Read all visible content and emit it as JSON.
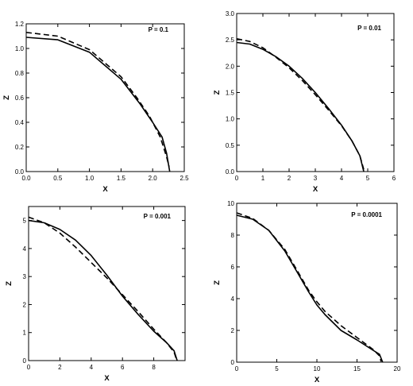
{
  "chart_data": [
    {
      "type": "line",
      "annotation": "P = 0.1",
      "xlabel": "X",
      "ylabel": "Z",
      "xlim": [
        0,
        2.5
      ],
      "ylim": [
        0,
        1.2
      ],
      "xticks": [
        "0.0",
        "0.5",
        "1.0",
        "1.5",
        "2.0",
        "2.5"
      ],
      "yticks": [
        "0.0",
        "0.2",
        "0.4",
        "0.6",
        "0.8",
        "1.0",
        "1.2"
      ],
      "grid": false,
      "series": [
        {
          "style": "solid",
          "points": [
            [
              0,
              1.09
            ],
            [
              0.5,
              1.07
            ],
            [
              1.0,
              0.97
            ],
            [
              1.5,
              0.75
            ],
            [
              1.8,
              0.55
            ],
            [
              2.0,
              0.4
            ],
            [
              2.15,
              0.28
            ],
            [
              2.22,
              0.15
            ],
            [
              2.27,
              0.0
            ]
          ]
        },
        {
          "style": "dashed",
          "points": [
            [
              0,
              1.13
            ],
            [
              0.5,
              1.1
            ],
            [
              1.0,
              0.99
            ],
            [
              1.5,
              0.77
            ],
            [
              1.75,
              0.6
            ],
            [
              1.95,
              0.45
            ],
            [
              2.12,
              0.28
            ],
            [
              2.22,
              0.12
            ],
            [
              2.26,
              0.04
            ]
          ]
        }
      ]
    },
    {
      "type": "line",
      "annotation": "P = 0.01",
      "xlabel": "X",
      "ylabel": "Z",
      "xlim": [
        0,
        6
      ],
      "ylim": [
        0,
        3.0
      ],
      "xticks": [
        "0",
        "1",
        "2",
        "3",
        "4",
        "5",
        "6"
      ],
      "yticks": [
        "0.0",
        "0.5",
        "1.0",
        "1.5",
        "2.0",
        "2.5",
        "3.0"
      ],
      "grid": false,
      "series": [
        {
          "style": "solid",
          "points": [
            [
              0,
              2.45
            ],
            [
              0.5,
              2.42
            ],
            [
              1.0,
              2.32
            ],
            [
              1.5,
              2.18
            ],
            [
              2.0,
              2.0
            ],
            [
              2.5,
              1.77
            ],
            [
              3.0,
              1.5
            ],
            [
              3.5,
              1.2
            ],
            [
              4.0,
              0.88
            ],
            [
              4.4,
              0.58
            ],
            [
              4.7,
              0.3
            ],
            [
              4.85,
              0.0
            ]
          ]
        },
        {
          "style": "dashed",
          "points": [
            [
              0,
              2.52
            ],
            [
              0.5,
              2.47
            ],
            [
              1.0,
              2.35
            ],
            [
              1.5,
              2.17
            ],
            [
              2.0,
              1.97
            ],
            [
              2.5,
              1.73
            ],
            [
              3.0,
              1.46
            ],
            [
              3.5,
              1.17
            ],
            [
              4.0,
              0.87
            ],
            [
              4.4,
              0.58
            ],
            [
              4.7,
              0.3
            ],
            [
              4.85,
              0.04
            ]
          ]
        }
      ]
    },
    {
      "type": "line",
      "annotation": "P = 0.001",
      "xlabel": "X",
      "ylabel": "Z",
      "xlim": [
        0,
        10
      ],
      "ylim": [
        0,
        5.5
      ],
      "xticks": [
        "0",
        "2",
        "4",
        "6",
        "8"
      ],
      "yticks": [
        "0",
        "1",
        "2",
        "3",
        "4",
        "5"
      ],
      "grid": false,
      "series": [
        {
          "style": "solid",
          "points": [
            [
              0,
              5.0
            ],
            [
              1,
              4.92
            ],
            [
              2,
              4.68
            ],
            [
              3,
              4.3
            ],
            [
              4,
              3.75
            ],
            [
              5,
              3.05
            ],
            [
              6,
              2.3
            ],
            [
              7,
              1.65
            ],
            [
              8,
              1.05
            ],
            [
              8.8,
              0.65
            ],
            [
              9.3,
              0.35
            ],
            [
              9.5,
              0.0
            ]
          ]
        },
        {
          "style": "dashed",
          "points": [
            [
              0,
              5.12
            ],
            [
              1,
              4.92
            ],
            [
              2,
              4.55
            ],
            [
              3,
              4.05
            ],
            [
              4,
              3.5
            ],
            [
              5,
              2.95
            ],
            [
              6,
              2.35
            ],
            [
              7,
              1.75
            ],
            [
              8,
              1.12
            ],
            [
              8.8,
              0.65
            ],
            [
              9.3,
              0.3
            ],
            [
              9.45,
              0.04
            ]
          ]
        }
      ]
    },
    {
      "type": "line",
      "annotation": "P = 0.0001",
      "xlabel": "X",
      "ylabel": "Z",
      "xlim": [
        0,
        20
      ],
      "ylim": [
        0,
        10
      ],
      "xticks": [
        "0",
        "5",
        "10",
        "15",
        "20"
      ],
      "yticks": [
        "0",
        "2",
        "4",
        "6",
        "8",
        "10"
      ],
      "grid": false,
      "series": [
        {
          "style": "solid",
          "points": [
            [
              0,
              9.25
            ],
            [
              2,
              9.0
            ],
            [
              4,
              8.3
            ],
            [
              6,
              7.0
            ],
            [
              7.5,
              5.7
            ],
            [
              9,
              4.4
            ],
            [
              10,
              3.6
            ],
            [
              11,
              3.0
            ],
            [
              12,
              2.5
            ],
            [
              13,
              2.0
            ],
            [
              15,
              1.4
            ],
            [
              17,
              0.75
            ],
            [
              17.8,
              0.5
            ],
            [
              18.2,
              0.0
            ]
          ]
        },
        {
          "style": "dashed",
          "points": [
            [
              0,
              9.4
            ],
            [
              2,
              9.05
            ],
            [
              4,
              8.3
            ],
            [
              6,
              7.1
            ],
            [
              7.5,
              5.8
            ],
            [
              9,
              4.5
            ],
            [
              10,
              3.8
            ],
            [
              11,
              3.2
            ],
            [
              12,
              2.75
            ],
            [
              13,
              2.3
            ],
            [
              15,
              1.55
            ],
            [
              17,
              0.8
            ],
            [
              17.8,
              0.4
            ],
            [
              18.0,
              0.04
            ]
          ]
        }
      ]
    }
  ]
}
